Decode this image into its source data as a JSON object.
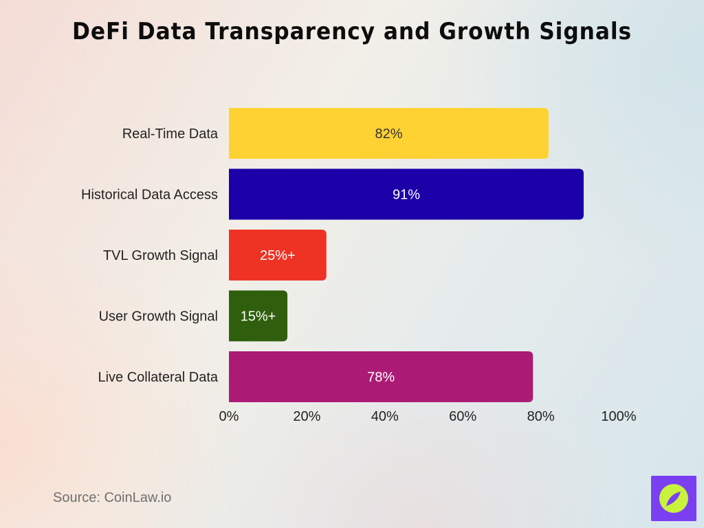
{
  "header": {
    "title": "DeFi Data Transparency and Growth Signals"
  },
  "chart_data": {
    "type": "bar",
    "orientation": "horizontal",
    "title": "DeFi Data Transparency and Growth Signals",
    "categories": [
      "Real-Time Data",
      "Historical Data Access",
      "TVL Growth Signal",
      "User Growth Signal",
      "Live Collateral Data"
    ],
    "values": [
      82,
      91,
      25,
      15,
      78
    ],
    "data_labels": [
      "82%",
      "91%",
      "25%+",
      "15%+",
      "78%"
    ],
    "colors": [
      "#ffd233",
      "#1c00a8",
      "#ee3224",
      "#2f5f0d",
      "#ab1b75"
    ],
    "label_colors": [
      "#333333",
      "#ffffff",
      "#ffffff",
      "#ffffff",
      "#ffffff"
    ],
    "xlim": [
      0,
      100
    ],
    "xticks": [
      0,
      20,
      40,
      60,
      80,
      100
    ],
    "xtick_labels": [
      "0%",
      "20%",
      "40%",
      "60%",
      "80%",
      "100%"
    ],
    "xlabel": "",
    "ylabel": "",
    "grid": false,
    "legend": "none"
  },
  "footer": {
    "source": "Source: CoinLaw.io"
  },
  "logo": {
    "icon": "compass-icon",
    "bg_color": "#7b3ff2",
    "circle_color": "#c8f23c",
    "needle_color": "#7b3ff2"
  }
}
